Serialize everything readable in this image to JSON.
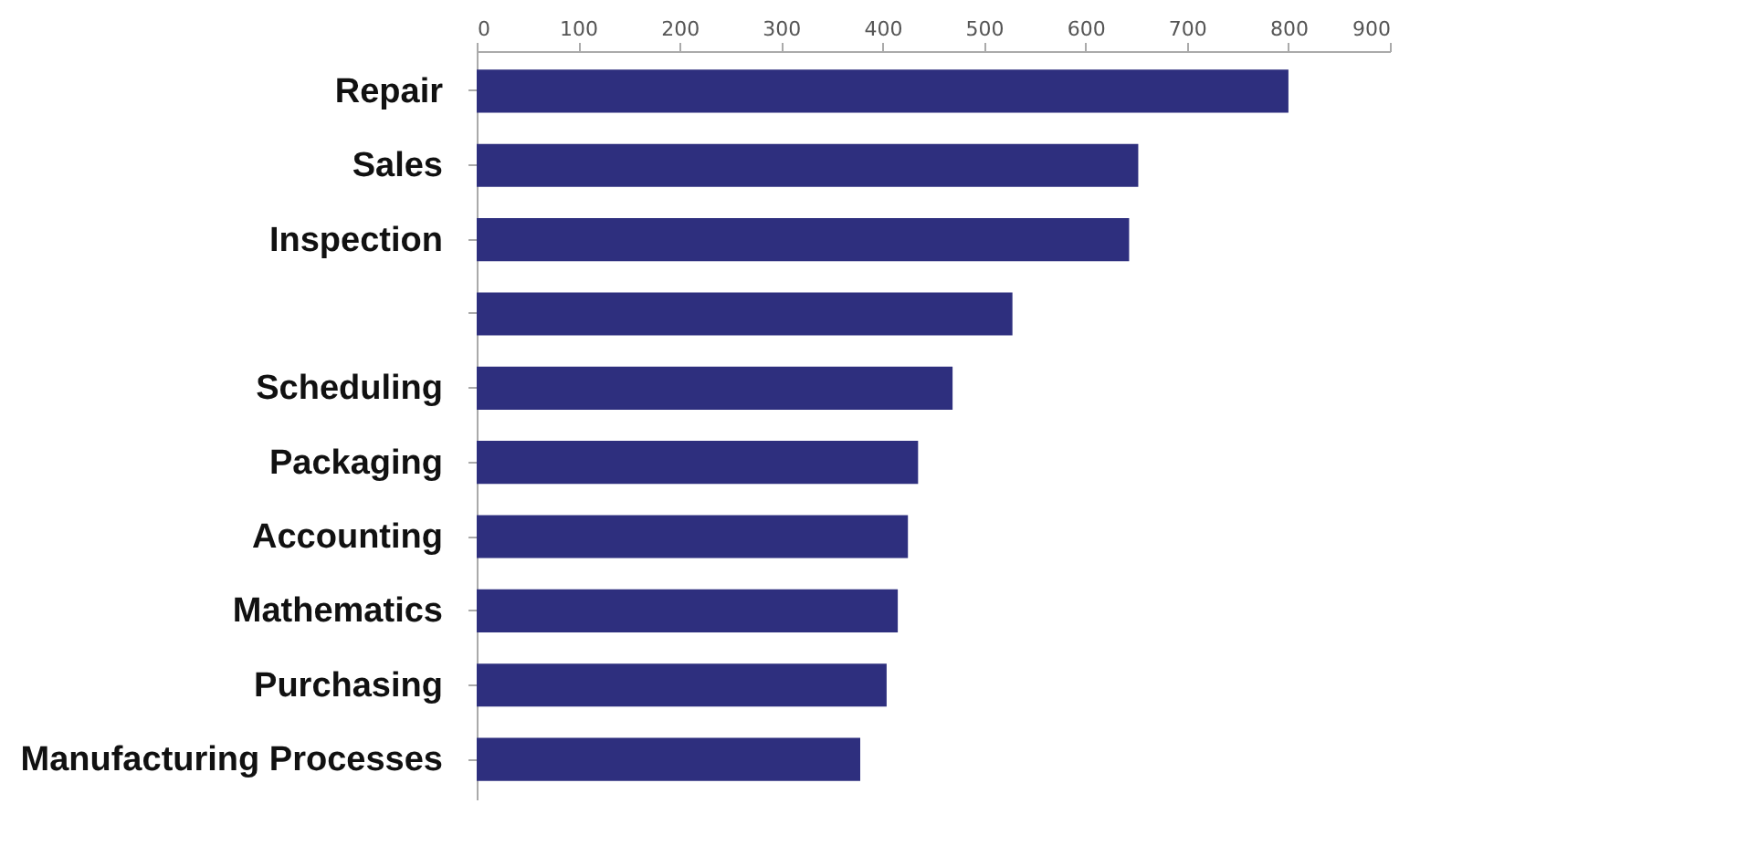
{
  "chart_data": {
    "type": "bar",
    "orientation": "horizontal",
    "categories": [
      "Repair",
      "Sales",
      "Inspection",
      null,
      "Scheduling",
      "Packaging",
      "Accounting",
      "Mathematics",
      "Purchasing",
      "Manufacturing Processes"
    ],
    "values": [
      800,
      652,
      643,
      528,
      469,
      435,
      425,
      415,
      404,
      378
    ],
    "color": "#2e2f7e",
    "xlim": [
      0,
      900
    ],
    "xticks": [
      0,
      100,
      200,
      300,
      400,
      500,
      600,
      700,
      800,
      900
    ],
    "grid": false
  }
}
